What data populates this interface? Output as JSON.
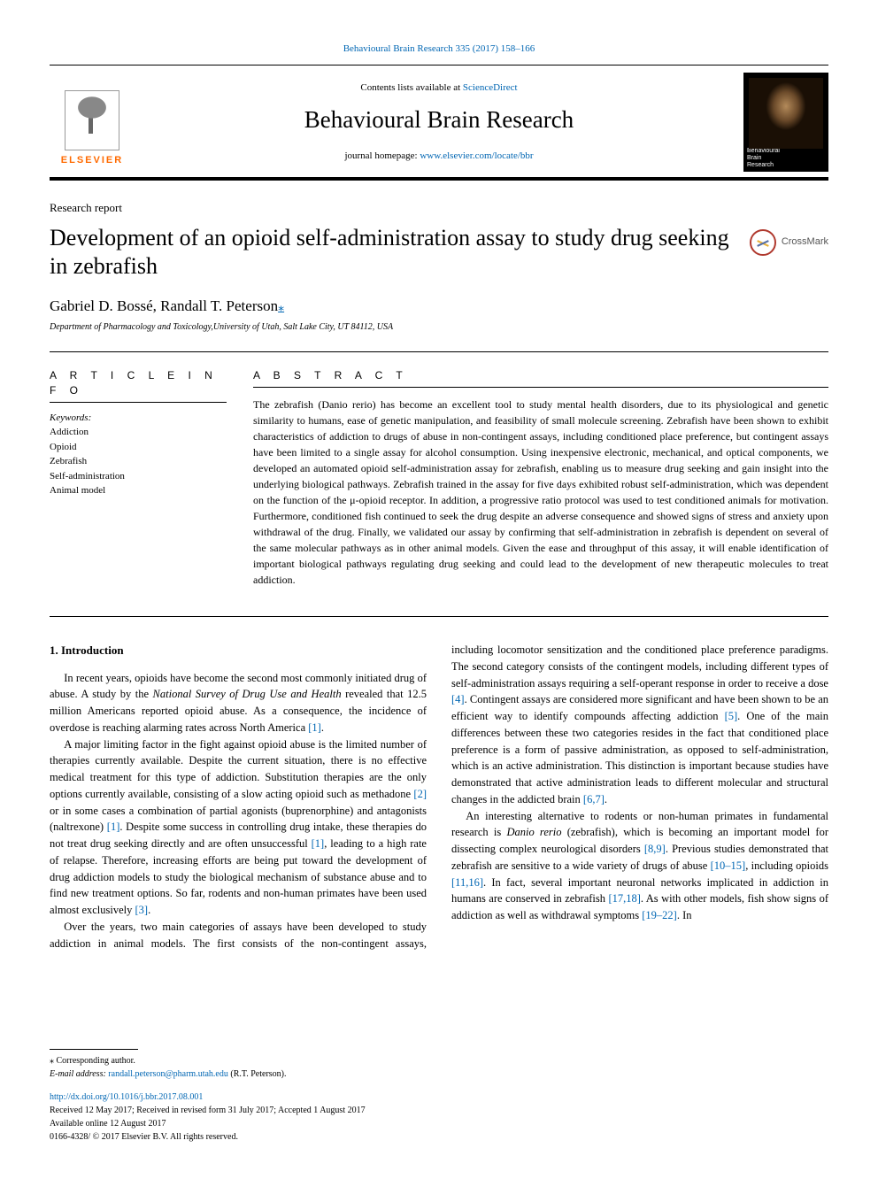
{
  "top_citation": {
    "journal": "Behavioural Brain Research",
    "vol_pages": "335 (2017) 158–166"
  },
  "masthead": {
    "contents_prefix": "Contents lists available at ",
    "contents_link": "ScienceDirect",
    "journal_name": "Behavioural Brain Research",
    "homepage_prefix": "journal homepage: ",
    "homepage_link": "www.elsevier.com/locate/bbr",
    "publisher_label": "ELSEVIER",
    "cover_caption": "Behavioural\nBrain\nResearch"
  },
  "crossmark_label": "CrossMark",
  "article_type": "Research report",
  "title": "Development of an opioid self-administration assay to study drug seeking in zebrafish",
  "authors": "Gabriel D. Bossé, Randall T. Peterson",
  "corr_marker": "⁎",
  "affiliation": "Department of Pharmacology and Toxicology,University of Utah, Salt Lake City, UT 84112, USA",
  "info_head": "A R T I C L E  I N F O",
  "abstract_head": "A B S T R A C T",
  "keywords_label": "Keywords:",
  "keywords": [
    "Addiction",
    "Opioid",
    "Zebrafish",
    "Self-administration",
    "Animal model"
  ],
  "abstract": "The zebrafish (Danio rerio) has become an excellent tool to study mental health disorders, due to its physiological and genetic similarity to humans, ease of genetic manipulation, and feasibility of small molecule screening. Zebrafish have been shown to exhibit characteristics of addiction to drugs of abuse in non-contingent assays, including conditioned place preference, but contingent assays have been limited to a single assay for alcohol consumption. Using inexpensive electronic, mechanical, and optical components, we developed an automated opioid self-administration assay for zebrafish, enabling us to measure drug seeking and gain insight into the underlying biological pathways. Zebrafish trained in the assay for five days exhibited robust self-administration, which was dependent on the function of the μ-opioid receptor. In addition, a progressive ratio protocol was used to test conditioned animals for motivation. Furthermore, conditioned fish continued to seek the drug despite an adverse consequence and showed signs of stress and anxiety upon withdrawal of the drug. Finally, we validated our assay by confirming that self-administration in zebrafish is dependent on several of the same molecular pathways as in other animal models. Given the ease and throughput of this assay, it will enable identification of important biological pathways regulating drug seeking and could lead to the development of new therapeutic molecules to treat addiction.",
  "intro_head": "1. Introduction",
  "para1_pre": "In recent years, opioids have become the second most commonly initiated drug of abuse. A study by the ",
  "para1_em": "National Survey of Drug Use and Health",
  "para1_post": " revealed that 12.5 million Americans reported opioid abuse. As a consequence, the incidence of overdose is reaching alarming rates across North America ",
  "para1_ref": "[1]",
  "para1_end": ".",
  "para2_a": "A major limiting factor in the fight against opioid abuse is the limited number of therapies currently available. Despite the current situation, there is no effective medical treatment for this type of addiction. Substitution therapies are the only options currently available, consisting of a slow acting opioid such as methadone ",
  "para2_r1": "[2]",
  "para2_b": " or in some cases a combination of partial agonists (buprenorphine) and antagonists (naltrexone) ",
  "para2_r2": "[1]",
  "para2_c": ". Despite some success in controlling drug intake, these therapies do not treat drug seeking directly and are often unsuccessful ",
  "para2_r3": "[1]",
  "para2_d": ", leading to a high rate of relapse. Therefore, increasing efforts are being put toward the development of drug addiction models to study the biological mechanism of substance abuse and to find new treatment options. So far, rodents and non-human primates have been used almost exclusively ",
  "para2_r4": "[3]",
  "para2_e": ".",
  "para3_a": "Over the years, two main categories of assays have been developed to study addiction in animal models. The first consists of the non-contingent assays, including locomotor sensitization and the conditioned place preference paradigms. The second category consists of the contingent models, including different types of self-administration assays requiring a self-operant response in order to receive a dose ",
  "para3_r1": "[4]",
  "para3_b": ". Contingent assays are considered more significant and have been shown to be an efficient way to identify compounds affecting addiction ",
  "para3_r2": "[5]",
  "para3_c": ". One of the main differences between these two categories resides in the fact that conditioned place preference is a form of passive administration, as opposed to self-administration, which is an active administration. This distinction is important because studies have demonstrated that active administration leads to different molecular and structural changes in the addicted brain ",
  "para3_r3": "[6,7]",
  "para3_d": ".",
  "para4_a": "An interesting alternative to rodents or non-human primates in fundamental research is ",
  "para4_em": "Danio rerio",
  "para4_b": " (zebrafish), which is becoming an important model for dissecting complex neurological disorders ",
  "para4_r1": "[8,9]",
  "para4_c": ". Previous studies demonstrated that zebrafish are sensitive to a wide variety of drugs of abuse ",
  "para4_r2": "[10–15]",
  "para4_d": ", including opioids ",
  "para4_r3": "[11,16]",
  "para4_e": ". In fact, several important neuronal networks implicated in addiction in humans are conserved in zebrafish ",
  "para4_r4": "[17,18]",
  "para4_f": ". As with other models, fish show signs of addiction as well as withdrawal symptoms ",
  "para4_r5": "[19–22]",
  "para4_g": ". In",
  "footnote": {
    "marker": "⁎",
    "label": " Corresponding author.",
    "email_label": "E-mail address: ",
    "email": "randall.peterson@pharm.utah.edu",
    "email_suffix": " (R.T. Peterson)."
  },
  "doi": "http://dx.doi.org/10.1016/j.bbr.2017.08.001",
  "history_l1": "Received 12 May 2017; Received in revised form 31 July 2017; Accepted 1 August 2017",
  "history_l2": "Available online 12 August 2017",
  "copyright": "0166-4328/ © 2017 Elsevier B.V. All rights reserved."
}
